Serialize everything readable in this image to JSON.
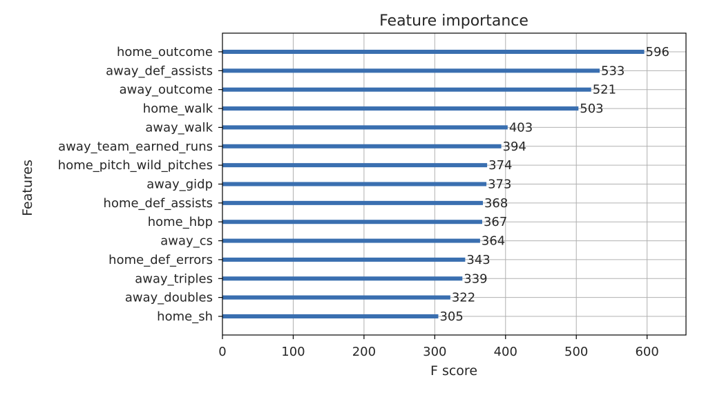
{
  "chart_data": {
    "type": "bar",
    "orientation": "horizontal",
    "title": "Feature importance",
    "xlabel": "F score",
    "ylabel": "Features",
    "categories": [
      "home_outcome",
      "away_def_assists",
      "away_outcome",
      "home_walk",
      "away_walk",
      "away_team_earned_runs",
      "home_pitch_wild_pitches",
      "away_gidp",
      "home_def_assists",
      "home_hbp",
      "away_cs",
      "home_def_errors",
      "away_triples",
      "away_doubles",
      "home_sh"
    ],
    "values": [
      596,
      533,
      521,
      503,
      403,
      394,
      374,
      373,
      368,
      367,
      364,
      343,
      339,
      322,
      305
    ],
    "xlim": [
      0,
      655
    ],
    "xticks": [
      0,
      100,
      200,
      300,
      400,
      500,
      600
    ],
    "grid": true,
    "bar_color": "#3a6fb0"
  }
}
